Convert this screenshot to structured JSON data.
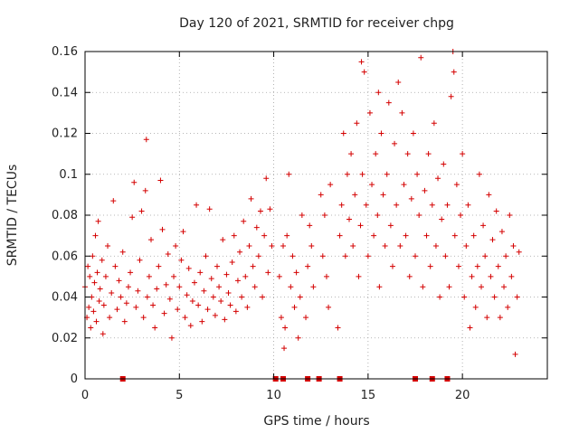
{
  "chart_data": {
    "type": "scatter",
    "title": "Day 120 of 2021, SRMTID for receiver chpg",
    "xlabel": "GPS time / hours",
    "ylabel": "SRMTID / TECUs",
    "xlim": [
      0,
      24.5
    ],
    "ylim": [
      0,
      0.16
    ],
    "xticks": [
      0,
      5,
      10,
      15,
      20
    ],
    "xtick_labels": [
      "0",
      "5",
      "10",
      "15",
      "20"
    ],
    "yticks": [
      0,
      0.02,
      0.04,
      0.06,
      0.08,
      0.1,
      0.12,
      0.14,
      0.16
    ],
    "ytick_labels": [
      "0",
      "0.02",
      "0.04",
      "0.06",
      "0.08",
      "0.1",
      "0.12",
      "0.14",
      "0.16"
    ],
    "grid": true,
    "marker": "plus",
    "color": "#d40000",
    "series": [
      {
        "name": "SRMTID",
        "points": [
          [
            0.0,
            0.045
          ],
          [
            0.1,
            0.03
          ],
          [
            0.15,
            0.055
          ],
          [
            0.2,
            0.035
          ],
          [
            0.25,
            0.05
          ],
          [
            0.3,
            0.025
          ],
          [
            0.35,
            0.04
          ],
          [
            0.4,
            0.06
          ],
          [
            0.45,
            0.033
          ],
          [
            0.5,
            0.047
          ],
          [
            0.55,
            0.07
          ],
          [
            0.6,
            0.028
          ],
          [
            0.65,
            0.052
          ],
          [
            0.7,
            0.077
          ],
          [
            0.75,
            0.038
          ],
          [
            0.8,
            0.044
          ],
          [
            0.9,
            0.058
          ],
          [
            0.95,
            0.022
          ],
          [
            1.0,
            0.036
          ],
          [
            1.1,
            0.05
          ],
          [
            1.2,
            0.065
          ],
          [
            1.3,
            0.03
          ],
          [
            1.4,
            0.042
          ],
          [
            1.5,
            0.087
          ],
          [
            1.6,
            0.055
          ],
          [
            1.7,
            0.034
          ],
          [
            1.8,
            0.048
          ],
          [
            1.9,
            0.04
          ],
          [
            2.0,
            0.062
          ],
          [
            2.1,
            0.028
          ],
          [
            2.2,
            0.037
          ],
          [
            2.3,
            0.045
          ],
          [
            2.4,
            0.052
          ],
          [
            2.5,
            0.079
          ],
          [
            2.6,
            0.096
          ],
          [
            2.7,
            0.035
          ],
          [
            2.8,
            0.043
          ],
          [
            2.9,
            0.058
          ],
          [
            3.0,
            0.082
          ],
          [
            3.1,
            0.03
          ],
          [
            3.2,
            0.092
          ],
          [
            3.25,
            0.117
          ],
          [
            3.3,
            0.04
          ],
          [
            3.4,
            0.05
          ],
          [
            3.5,
            0.068
          ],
          [
            3.6,
            0.036
          ],
          [
            3.7,
            0.025
          ],
          [
            3.8,
            0.044
          ],
          [
            3.9,
            0.055
          ],
          [
            4.0,
            0.097
          ],
          [
            4.1,
            0.073
          ],
          [
            4.2,
            0.032
          ],
          [
            4.3,
            0.046
          ],
          [
            4.4,
            0.061
          ],
          [
            4.5,
            0.039
          ],
          [
            4.6,
            0.02
          ],
          [
            4.7,
            0.05
          ],
          [
            4.8,
            0.065
          ],
          [
            4.9,
            0.034
          ],
          [
            5.0,
            0.045
          ],
          [
            5.1,
            0.058
          ],
          [
            5.2,
            0.072
          ],
          [
            5.3,
            0.03
          ],
          [
            5.4,
            0.041
          ],
          [
            5.5,
            0.054
          ],
          [
            5.6,
            0.026
          ],
          [
            5.7,
            0.038
          ],
          [
            5.8,
            0.047
          ],
          [
            5.9,
            0.085
          ],
          [
            6.0,
            0.036
          ],
          [
            6.1,
            0.052
          ],
          [
            6.2,
            0.028
          ],
          [
            6.3,
            0.043
          ],
          [
            6.4,
            0.06
          ],
          [
            6.5,
            0.034
          ],
          [
            6.6,
            0.083
          ],
          [
            6.7,
            0.049
          ],
          [
            6.8,
            0.04
          ],
          [
            6.9,
            0.031
          ],
          [
            7.0,
            0.055
          ],
          [
            7.1,
            0.045
          ],
          [
            7.2,
            0.038
          ],
          [
            7.3,
            0.068
          ],
          [
            7.4,
            0.029
          ],
          [
            7.5,
            0.051
          ],
          [
            7.6,
            0.042
          ],
          [
            7.7,
            0.036
          ],
          [
            7.8,
            0.057
          ],
          [
            7.9,
            0.07
          ],
          [
            8.0,
            0.033
          ],
          [
            8.1,
            0.048
          ],
          [
            8.2,
            0.062
          ],
          [
            8.3,
            0.04
          ],
          [
            8.4,
            0.077
          ],
          [
            8.5,
            0.05
          ],
          [
            8.6,
            0.035
          ],
          [
            8.7,
            0.065
          ],
          [
            8.8,
            0.088
          ],
          [
            8.9,
            0.055
          ],
          [
            9.0,
            0.045
          ],
          [
            9.1,
            0.074
          ],
          [
            9.2,
            0.06
          ],
          [
            9.3,
            0.082
          ],
          [
            9.4,
            0.04
          ],
          [
            9.5,
            0.07
          ],
          [
            9.6,
            0.098
          ],
          [
            9.7,
            0.052
          ],
          [
            9.8,
            0.083
          ],
          [
            9.9,
            0.065
          ],
          [
            10.3,
            0.05
          ],
          [
            10.4,
            0.03
          ],
          [
            10.5,
            0.065
          ],
          [
            10.55,
            0.015
          ],
          [
            10.6,
            0.025
          ],
          [
            10.7,
            0.07
          ],
          [
            10.8,
            0.1
          ],
          [
            10.9,
            0.045
          ],
          [
            11.0,
            0.06
          ],
          [
            11.1,
            0.035
          ],
          [
            11.2,
            0.052
          ],
          [
            11.3,
            0.02
          ],
          [
            11.4,
            0.04
          ],
          [
            11.5,
            0.08
          ],
          [
            11.7,
            0.03
          ],
          [
            11.8,
            0.055
          ],
          [
            11.9,
            0.075
          ],
          [
            12.0,
            0.065
          ],
          [
            12.1,
            0.045
          ],
          [
            12.5,
            0.09
          ],
          [
            12.6,
            0.06
          ],
          [
            12.7,
            0.08
          ],
          [
            12.8,
            0.05
          ],
          [
            12.9,
            0.035
          ],
          [
            13.0,
            0.095
          ],
          [
            13.4,
            0.025
          ],
          [
            13.5,
            0.07
          ],
          [
            13.6,
            0.085
          ],
          [
            13.7,
            0.12
          ],
          [
            13.8,
            0.06
          ],
          [
            13.9,
            0.1
          ],
          [
            14.0,
            0.078
          ],
          [
            14.1,
            0.11
          ],
          [
            14.2,
            0.065
          ],
          [
            14.3,
            0.09
          ],
          [
            14.4,
            0.125
          ],
          [
            14.5,
            0.05
          ],
          [
            14.6,
            0.075
          ],
          [
            14.65,
            0.155
          ],
          [
            14.7,
            0.1
          ],
          [
            14.8,
            0.15
          ],
          [
            14.9,
            0.085
          ],
          [
            15.0,
            0.06
          ],
          [
            15.1,
            0.13
          ],
          [
            15.2,
            0.095
          ],
          [
            15.3,
            0.07
          ],
          [
            15.4,
            0.11
          ],
          [
            15.5,
            0.08
          ],
          [
            15.55,
            0.14
          ],
          [
            15.6,
            0.045
          ],
          [
            15.7,
            0.12
          ],
          [
            15.8,
            0.09
          ],
          [
            15.9,
            0.065
          ],
          [
            16.0,
            0.1
          ],
          [
            16.1,
            0.135
          ],
          [
            16.2,
            0.075
          ],
          [
            16.3,
            0.055
          ],
          [
            16.4,
            0.115
          ],
          [
            16.5,
            0.085
          ],
          [
            16.6,
            0.145
          ],
          [
            16.7,
            0.065
          ],
          [
            16.8,
            0.13
          ],
          [
            16.9,
            0.095
          ],
          [
            17.0,
            0.07
          ],
          [
            17.1,
            0.11
          ],
          [
            17.2,
            0.05
          ],
          [
            17.3,
            0.088
          ],
          [
            17.4,
            0.12
          ],
          [
            17.5,
            0.06
          ],
          [
            17.6,
            0.1
          ],
          [
            17.7,
            0.08
          ],
          [
            17.8,
            0.157
          ],
          [
            17.9,
            0.045
          ],
          [
            18.0,
            0.092
          ],
          [
            18.1,
            0.07
          ],
          [
            18.2,
            0.11
          ],
          [
            18.3,
            0.055
          ],
          [
            18.4,
            0.085
          ],
          [
            18.5,
            0.125
          ],
          [
            18.6,
            0.065
          ],
          [
            18.7,
            0.098
          ],
          [
            18.8,
            0.04
          ],
          [
            18.9,
            0.078
          ],
          [
            19.0,
            0.105
          ],
          [
            19.1,
            0.06
          ],
          [
            19.2,
            0.085
          ],
          [
            19.3,
            0.045
          ],
          [
            19.4,
            0.138
          ],
          [
            19.5,
            0.16
          ],
          [
            19.55,
            0.15
          ],
          [
            19.6,
            0.07
          ],
          [
            19.7,
            0.095
          ],
          [
            19.8,
            0.055
          ],
          [
            19.9,
            0.08
          ],
          [
            20.0,
            0.11
          ],
          [
            20.1,
            0.04
          ],
          [
            20.2,
            0.065
          ],
          [
            20.3,
            0.085
          ],
          [
            20.4,
            0.025
          ],
          [
            20.5,
            0.05
          ],
          [
            20.6,
            0.07
          ],
          [
            20.7,
            0.035
          ],
          [
            20.8,
            0.055
          ],
          [
            20.9,
            0.1
          ],
          [
            21.0,
            0.045
          ],
          [
            21.1,
            0.075
          ],
          [
            21.2,
            0.06
          ],
          [
            21.3,
            0.03
          ],
          [
            21.4,
            0.09
          ],
          [
            21.5,
            0.05
          ],
          [
            21.6,
            0.068
          ],
          [
            21.7,
            0.04
          ],
          [
            21.8,
            0.082
          ],
          [
            21.9,
            0.055
          ],
          [
            22.0,
            0.03
          ],
          [
            22.1,
            0.072
          ],
          [
            22.2,
            0.045
          ],
          [
            22.3,
            0.06
          ],
          [
            22.4,
            0.035
          ],
          [
            22.5,
            0.08
          ],
          [
            22.6,
            0.05
          ],
          [
            22.7,
            0.065
          ],
          [
            22.8,
            0.012
          ],
          [
            22.9,
            0.04
          ],
          [
            23.0,
            0.062
          ]
        ]
      }
    ],
    "gap_markers_x": [
      2.0,
      10.1,
      10.5,
      11.8,
      12.4,
      13.5,
      17.5,
      18.4,
      19.2
    ],
    "gap_marker_y": 0
  }
}
